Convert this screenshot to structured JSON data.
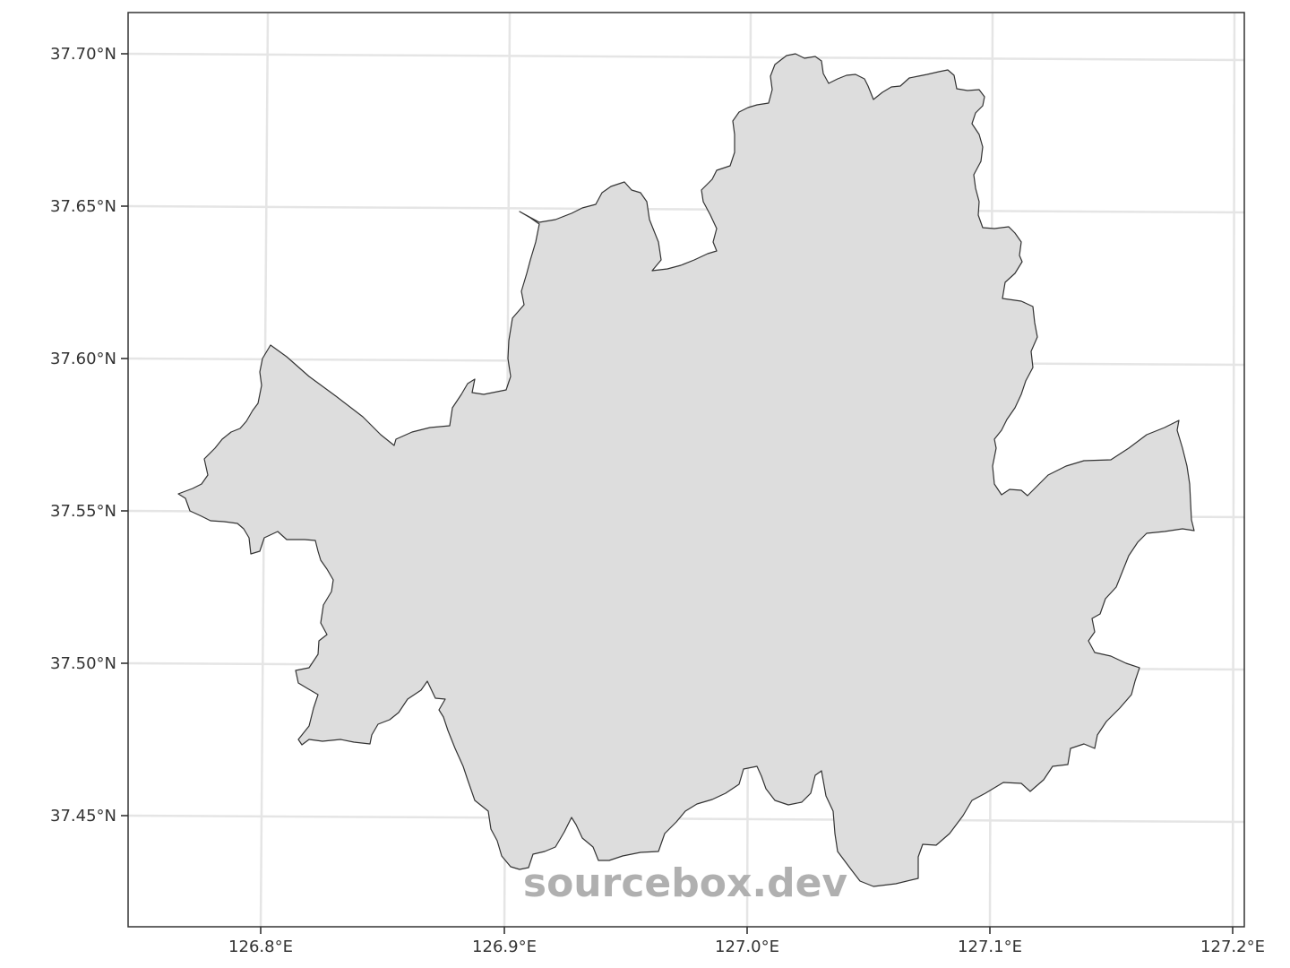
{
  "map": {
    "x_ticks": [
      "126.8°E",
      "126.9°E",
      "127.0°E",
      "127.1°E",
      "127.2°E"
    ],
    "y_ticks": [
      "37.70°N",
      "37.65°N",
      "37.60°N",
      "37.55°N",
      "37.50°N",
      "37.45°N"
    ],
    "watermark": "sourcebox.dev",
    "colors": {
      "fill": "#dddddd",
      "outline": "#333333",
      "grid": "#e5e5e5",
      "watermark": "#b0b0b0"
    }
  }
}
